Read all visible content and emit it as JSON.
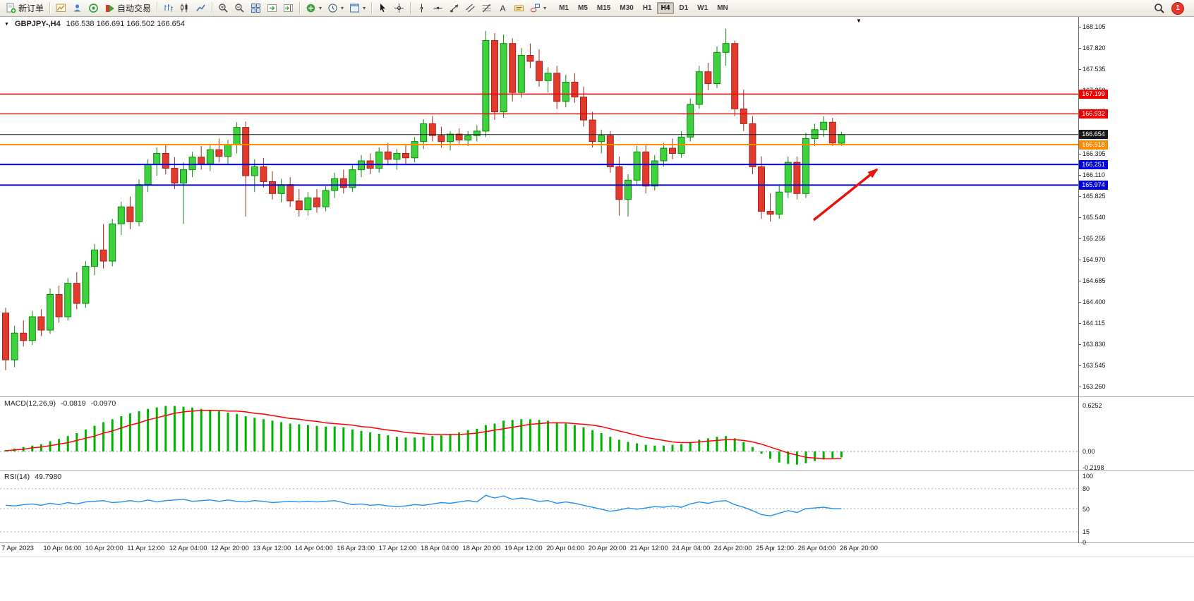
{
  "toolbar": {
    "groups": [
      {
        "items": [
          {
            "id": "new-order",
            "icon": "doc-plus",
            "label": "新订单"
          }
        ]
      },
      {
        "items": [
          {
            "id": "chart-profiles",
            "icon": "gold-chart"
          },
          {
            "id": "profile",
            "icon": "profile"
          },
          {
            "id": "community",
            "icon": "market"
          },
          {
            "id": "auto-trading",
            "icon": "play",
            "label": "自动交易"
          }
        ]
      },
      {
        "items": [
          {
            "id": "bar-chart-mode",
            "icon": "bars-chart"
          },
          {
            "id": "candle-chart-mode",
            "icon": "candles-chart"
          },
          {
            "id": "line-chart-mode",
            "icon": "line-chart"
          }
        ]
      },
      {
        "items": [
          {
            "id": "zoom-in",
            "icon": "zoom-in"
          },
          {
            "id": "zoom-out",
            "icon": "zoom-out"
          },
          {
            "id": "tile-windows",
            "icon": "tile"
          },
          {
            "id": "auto-scroll",
            "icon": "scroll-end"
          },
          {
            "id": "chart-shift",
            "icon": "shift"
          }
        ]
      },
      {
        "items": [
          {
            "id": "indicators",
            "icon": "indicators",
            "dropdown": true
          },
          {
            "id": "periods",
            "icon": "clock",
            "dropdown": true
          },
          {
            "id": "templates",
            "icon": "template",
            "dropdown": true
          }
        ]
      },
      {
        "items": [
          {
            "id": "cursor",
            "icon": "cursor"
          },
          {
            "id": "crosshair",
            "icon": "crosshair"
          }
        ]
      },
      {
        "items": [
          {
            "id": "vertical-line",
            "icon": "vline"
          },
          {
            "id": "horizontal-line",
            "icon": "hline"
          },
          {
            "id": "trendline",
            "icon": "tline"
          },
          {
            "id": "equidistant-channel",
            "icon": "channel"
          },
          {
            "id": "fibonacci",
            "icon": "fibo"
          },
          {
            "id": "text",
            "icon": "text-a"
          },
          {
            "id": "text-label",
            "icon": "label"
          },
          {
            "id": "shapes",
            "icon": "shapes",
            "dropdown": true
          }
        ]
      }
    ],
    "timeframes": {
      "options": [
        "M1",
        "M5",
        "M15",
        "M30",
        "H1",
        "H4",
        "D1",
        "W1",
        "MN"
      ],
      "active": "H4"
    },
    "right": {
      "notification_count": "1"
    }
  },
  "chart": {
    "header": {
      "symbol": "GBPJPY-,H4",
      "ohlc": "166.538 166.691 166.502 166.654"
    }
  },
  "chart_data": {
    "type": "candlestick",
    "symbol": "GBPJPY",
    "timeframe": "H4",
    "ohlc_display": {
      "open": "166.538",
      "high": "166.691",
      "low": "166.502",
      "close": "166.654"
    },
    "price_axis": {
      "ticks": [
        "168.105",
        "167.820",
        "167.535",
        "167.250",
        "166.965",
        "166.680",
        "166.395",
        "166.110",
        "165.825",
        "165.540",
        "165.255",
        "164.970",
        "164.685",
        "164.400",
        "164.115",
        "163.830",
        "163.545",
        "163.260"
      ]
    },
    "levels": [
      {
        "label": "167.199",
        "price": 167.199,
        "color": "#ee0000",
        "width": 1.4
      },
      {
        "label": "166.932",
        "price": 166.932,
        "color": "#ee0000",
        "width": 1.4
      },
      {
        "label": "166.654",
        "price": 166.654,
        "color": "#1a1a1a",
        "width": 1
      },
      {
        "label": "166.518",
        "price": 166.518,
        "color": "#ff8a00",
        "width": 2
      },
      {
        "label": "166.251",
        "price": 166.251,
        "color": "#0000dd",
        "width": 2
      },
      {
        "label": "165.974",
        "price": 165.974,
        "color": "#0000dd",
        "width": 2
      }
    ],
    "candles": [
      [
        164.25,
        164.32,
        163.48,
        163.62
      ],
      [
        163.62,
        164.08,
        163.52,
        163.98
      ],
      [
        163.98,
        164.15,
        163.8,
        163.88
      ],
      [
        163.88,
        164.28,
        163.82,
        164.2
      ],
      [
        164.2,
        164.3,
        163.94,
        164.02
      ],
      [
        164.02,
        164.58,
        163.97,
        164.5
      ],
      [
        164.5,
        164.62,
        164.12,
        164.2
      ],
      [
        164.2,
        164.72,
        164.15,
        164.65
      ],
      [
        164.65,
        164.8,
        164.3,
        164.38
      ],
      [
        164.38,
        164.95,
        164.32,
        164.88
      ],
      [
        164.88,
        165.18,
        164.76,
        165.1
      ],
      [
        165.1,
        165.45,
        164.85,
        164.95
      ],
      [
        164.95,
        165.52,
        164.88,
        165.45
      ],
      [
        165.45,
        165.75,
        165.3,
        165.68
      ],
      [
        165.68,
        165.82,
        165.38,
        165.48
      ],
      [
        165.48,
        166.05,
        165.42,
        165.98
      ],
      [
        165.98,
        166.32,
        165.88,
        166.25
      ],
      [
        166.25,
        166.48,
        166.1,
        166.4
      ],
      [
        166.4,
        166.52,
        166.12,
        166.2
      ],
      [
        166.2,
        166.35,
        165.92,
        166.0
      ],
      [
        166.0,
        166.28,
        165.45,
        166.18
      ],
      [
        166.18,
        166.42,
        166.08,
        166.35
      ],
      [
        166.35,
        166.5,
        166.18,
        166.26
      ],
      [
        166.26,
        166.52,
        166.16,
        166.45
      ],
      [
        166.45,
        166.6,
        166.28,
        166.36
      ],
      [
        166.36,
        166.58,
        166.26,
        166.52
      ],
      [
        166.52,
        166.82,
        166.4,
        166.75
      ],
      [
        166.75,
        166.83,
        165.55,
        166.1
      ],
      [
        166.1,
        166.32,
        165.88,
        166.22
      ],
      [
        166.22,
        166.34,
        165.94,
        166.02
      ],
      [
        166.02,
        166.16,
        165.78,
        165.86
      ],
      [
        165.86,
        166.06,
        165.74,
        165.98
      ],
      [
        165.98,
        166.08,
        165.68,
        165.76
      ],
      [
        165.76,
        165.92,
        165.55,
        165.64
      ],
      [
        165.64,
        165.88,
        165.56,
        165.8
      ],
      [
        165.8,
        165.92,
        165.6,
        165.68
      ],
      [
        165.68,
        165.96,
        165.62,
        165.9
      ],
      [
        165.9,
        166.14,
        165.8,
        166.06
      ],
      [
        166.06,
        166.18,
        165.86,
        165.94
      ],
      [
        165.94,
        166.24,
        165.88,
        166.18
      ],
      [
        166.18,
        166.38,
        166.08,
        166.3
      ],
      [
        166.3,
        166.4,
        166.12,
        166.2
      ],
      [
        166.2,
        166.48,
        166.14,
        166.42
      ],
      [
        166.42,
        166.54,
        166.24,
        166.32
      ],
      [
        166.32,
        166.46,
        166.18,
        166.4
      ],
      [
        166.4,
        166.52,
        166.26,
        166.34
      ],
      [
        166.34,
        166.62,
        166.28,
        166.56
      ],
      [
        166.56,
        166.86,
        166.46,
        166.8
      ],
      [
        166.8,
        166.9,
        166.56,
        166.64
      ],
      [
        166.64,
        166.76,
        166.48,
        166.56
      ],
      [
        166.56,
        166.7,
        166.44,
        166.66
      ],
      [
        166.66,
        166.74,
        166.52,
        166.58
      ],
      [
        166.58,
        166.7,
        166.5,
        166.64
      ],
      [
        166.64,
        166.78,
        166.56,
        166.7
      ],
      [
        166.7,
        168.05,
        166.62,
        167.92
      ],
      [
        167.92,
        168.02,
        166.85,
        166.96
      ],
      [
        166.96,
        168.0,
        166.88,
        167.88
      ],
      [
        167.88,
        167.95,
        167.1,
        167.22
      ],
      [
        167.22,
        167.82,
        167.15,
        167.72
      ],
      [
        167.72,
        167.88,
        167.55,
        167.64
      ],
      [
        167.64,
        167.8,
        167.3,
        167.38
      ],
      [
        167.38,
        167.56,
        167.22,
        167.48
      ],
      [
        167.48,
        167.58,
        167.0,
        167.1
      ],
      [
        167.1,
        167.46,
        167.02,
        167.36
      ],
      [
        167.36,
        167.48,
        167.08,
        167.16
      ],
      [
        167.16,
        167.3,
        166.76,
        166.85
      ],
      [
        166.85,
        166.96,
        166.48,
        166.56
      ],
      [
        166.56,
        166.72,
        166.4,
        166.64
      ],
      [
        166.64,
        166.7,
        166.14,
        166.22
      ],
      [
        166.22,
        166.36,
        165.56,
        165.78
      ],
      [
        165.78,
        166.12,
        165.55,
        166.04
      ],
      [
        166.04,
        166.5,
        165.98,
        166.42
      ],
      [
        166.42,
        166.52,
        165.86,
        165.96
      ],
      [
        165.96,
        166.38,
        165.9,
        166.3
      ],
      [
        166.3,
        166.54,
        166.22,
        166.47
      ],
      [
        166.47,
        166.6,
        166.32,
        166.4
      ],
      [
        166.4,
        166.7,
        166.34,
        166.62
      ],
      [
        166.62,
        167.14,
        166.56,
        167.06
      ],
      [
        167.06,
        167.58,
        167.0,
        167.5
      ],
      [
        167.5,
        167.62,
        167.25,
        167.34
      ],
      [
        167.34,
        167.84,
        167.28,
        167.76
      ],
      [
        167.76,
        168.08,
        167.58,
        167.88
      ],
      [
        167.88,
        167.92,
        166.9,
        167.0
      ],
      [
        167.0,
        167.26,
        166.7,
        166.8
      ],
      [
        166.8,
        166.9,
        166.12,
        166.22
      ],
      [
        166.22,
        166.36,
        165.52,
        165.62
      ],
      [
        165.62,
        165.86,
        165.48,
        165.58
      ],
      [
        165.58,
        165.96,
        165.52,
        165.88
      ],
      [
        165.88,
        166.36,
        165.8,
        166.28
      ],
      [
        166.28,
        166.36,
        165.78,
        165.86
      ],
      [
        165.86,
        166.68,
        165.8,
        166.6
      ],
      [
        166.6,
        166.8,
        166.5,
        166.72
      ],
      [
        166.72,
        166.9,
        166.62,
        166.82
      ],
      [
        166.82,
        166.88,
        166.5,
        166.54
      ],
      [
        166.538,
        166.691,
        166.502,
        166.654
      ]
    ],
    "candle_colors": {
      "up": "#3fd23f",
      "up_border": "#0a8a0a",
      "down": "#e23b2e",
      "down_border": "#a2241a"
    },
    "time_axis": {
      "labels": [
        "7 Apr 2023",
        "10 Apr 04:00",
        "10 Apr 20:00",
        "11 Apr 12:00",
        "12 Apr 04:00",
        "12 Apr 20:00",
        "13 Apr 12:00",
        "14 Apr 04:00",
        "16 Apr 23:00",
        "17 Apr 12:00",
        "18 Apr 04:00",
        "18 Apr 20:00",
        "19 Apr 12:00",
        "20 Apr 04:00",
        "20 Apr 20:00",
        "21 Apr 12:00",
        "24 Apr 04:00",
        "24 Apr 20:00",
        "25 Apr 12:00",
        "26 Apr 04:00",
        "26 Apr 20:00"
      ]
    },
    "annotations": {
      "arrow": {
        "from": [
          1153,
          288
        ],
        "to": [
          1243,
          216
        ],
        "color": "#e8150d"
      },
      "marker_triangle_x": 1213
    },
    "indicators": {
      "macd": {
        "name": "MACD(12,26,9)",
        "value_main": "-0.0819",
        "value_signal": "-0.0970",
        "axis": [
          "0.6252",
          "0.00",
          "-0.2198"
        ],
        "histogram_color": "#00b300",
        "signal_color": "#ff0000",
        "histogram": [
          0.02,
          0.04,
          0.06,
          0.08,
          0.1,
          0.14,
          0.17,
          0.21,
          0.25,
          0.3,
          0.35,
          0.4,
          0.44,
          0.48,
          0.52,
          0.55,
          0.58,
          0.6,
          0.62,
          0.62,
          0.61,
          0.6,
          0.58,
          0.57,
          0.55,
          0.53,
          0.51,
          0.48,
          0.46,
          0.44,
          0.42,
          0.4,
          0.38,
          0.37,
          0.36,
          0.35,
          0.34,
          0.34,
          0.33,
          0.3,
          0.28,
          0.26,
          0.24,
          0.22,
          0.2,
          0.19,
          0.19,
          0.2,
          0.21,
          0.22,
          0.24,
          0.26,
          0.29,
          0.31,
          0.36,
          0.38,
          0.42,
          0.43,
          0.44,
          0.44,
          0.43,
          0.42,
          0.4,
          0.38,
          0.36,
          0.33,
          0.29,
          0.25,
          0.2,
          0.16,
          0.13,
          0.11,
          0.09,
          0.08,
          0.08,
          0.09,
          0.1,
          0.13,
          0.16,
          0.18,
          0.2,
          0.21,
          0.18,
          0.13,
          0.06,
          -0.03,
          -0.1,
          -0.15,
          -0.17,
          -0.18,
          -0.16,
          -0.13,
          -0.11,
          -0.09,
          -0.0819
        ],
        "signal": [
          0.01,
          0.02,
          0.03,
          0.05,
          0.06,
          0.08,
          0.1,
          0.12,
          0.15,
          0.18,
          0.21,
          0.25,
          0.28,
          0.32,
          0.36,
          0.39,
          0.43,
          0.46,
          0.49,
          0.52,
          0.54,
          0.55,
          0.56,
          0.56,
          0.56,
          0.55,
          0.55,
          0.54,
          0.52,
          0.51,
          0.49,
          0.47,
          0.45,
          0.44,
          0.42,
          0.41,
          0.39,
          0.38,
          0.37,
          0.36,
          0.34,
          0.33,
          0.31,
          0.29,
          0.28,
          0.26,
          0.25,
          0.24,
          0.23,
          0.23,
          0.23,
          0.23,
          0.24,
          0.25,
          0.27,
          0.29,
          0.31,
          0.33,
          0.35,
          0.37,
          0.38,
          0.39,
          0.39,
          0.39,
          0.38,
          0.37,
          0.36,
          0.34,
          0.31,
          0.28,
          0.25,
          0.22,
          0.19,
          0.17,
          0.15,
          0.13,
          0.12,
          0.12,
          0.13,
          0.14,
          0.15,
          0.16,
          0.16,
          0.15,
          0.13,
          0.1,
          0.06,
          0.02,
          -0.02,
          -0.05,
          -0.08,
          -0.09,
          -0.1,
          -0.1,
          -0.097
        ]
      },
      "rsi": {
        "name": "RSI(14)",
        "value": "49.7980",
        "axis_labels": [
          "100",
          "80",
          "50",
          "15",
          "0"
        ],
        "levels": [
          80,
          50,
          15
        ],
        "line_color": "#2090f0",
        "series": [
          55,
          54,
          56,
          57,
          55,
          58,
          56,
          59,
          57,
          60,
          61,
          62,
          59,
          60,
          62,
          60,
          63,
          60,
          62,
          63,
          64,
          61,
          62,
          63,
          61,
          63,
          61,
          60,
          62,
          61,
          59,
          60,
          61,
          60,
          61,
          60,
          61,
          62,
          59,
          56,
          57,
          55,
          56,
          54,
          53,
          54,
          56,
          55,
          57,
          59,
          58,
          60,
          62,
          60,
          70,
          66,
          69,
          64,
          66,
          64,
          61,
          62,
          58,
          60,
          58,
          55,
          52,
          49,
          46,
          48,
          51,
          49,
          51,
          53,
          52,
          54,
          52,
          57,
          60,
          58,
          61,
          62,
          56,
          52,
          47,
          41,
          39,
          43,
          47,
          44,
          50,
          51,
          52,
          50,
          49.798
        ]
      }
    }
  }
}
